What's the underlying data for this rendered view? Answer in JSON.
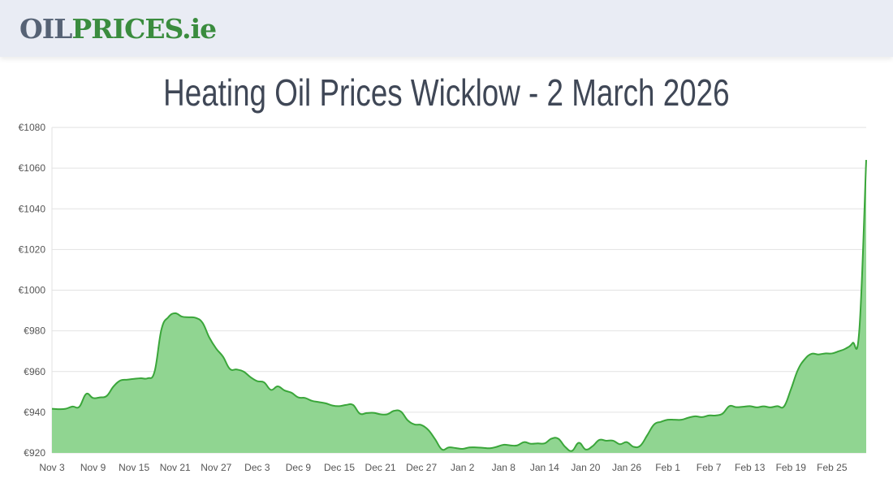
{
  "header": {
    "logo_part1": "OIL",
    "logo_part2": "PRICES.ie"
  },
  "page_title": "Heating Oil Prices Wicklow - 2 March 2026",
  "colors": {
    "header_bg": "#e9ecf4",
    "logo_grey": "#566275",
    "logo_green": "#3a8c3e",
    "line": "#3aa63a",
    "fill": "#90d591"
  },
  "chart_data": {
    "type": "area",
    "title": "",
    "xlabel": "",
    "ylabel": "",
    "ylim": [
      920,
      1080
    ],
    "y_ticks": [
      "€920",
      "€940",
      "€960",
      "€980",
      "€1000",
      "€1020",
      "€1040",
      "€1060",
      "€1080"
    ],
    "x_ticks": [
      "Nov 3",
      "Nov 9",
      "Nov 15",
      "Nov 21",
      "Nov 27",
      "Dec 3",
      "Dec 9",
      "Dec 15",
      "Dec 21",
      "Dec 27",
      "Jan 2",
      "Jan 8",
      "Jan 14",
      "Jan 20",
      "Jan 26",
      "Feb 1",
      "Feb 7",
      "Feb 13",
      "Feb 19",
      "Feb 25"
    ],
    "x_start": "Nov 3",
    "x_end": "Mar 2",
    "grid": true,
    "values": [
      941.7,
      941.5,
      941.7,
      942.8,
      942.7,
      949,
      947,
      947.3,
      948,
      952.7,
      955.6,
      956,
      956.4,
      956.7,
      956.7,
      960,
      980.7,
      986.7,
      988.7,
      987,
      986.7,
      986.4,
      984,
      976.7,
      971.3,
      967.3,
      961.3,
      961,
      960,
      957.3,
      955.3,
      954.7,
      951,
      952.7,
      950.7,
      949.6,
      947.3,
      947,
      945.6,
      945,
      944.4,
      943.3,
      943,
      943.6,
      943.6,
      939.3,
      939.6,
      939.7,
      939,
      939,
      940.7,
      940.3,
      936,
      934,
      933.7,
      931.3,
      926.7,
      921.7,
      922.7,
      922.4,
      922,
      922.7,
      922.7,
      922.5,
      922.3,
      923,
      924,
      923.7,
      923.7,
      925.3,
      924.5,
      924.7,
      924.7,
      927,
      927,
      923,
      921,
      925,
      921.7,
      923.3,
      926.4,
      926,
      926,
      924.3,
      925.3,
      923,
      923.6,
      928.7,
      934,
      935.3,
      936.3,
      936.3,
      936.3,
      937.3,
      938,
      937.6,
      938.4,
      938.4,
      939.3,
      943,
      942.5,
      942.7,
      943,
      942.4,
      942.9,
      942.4,
      943,
      942.9,
      951.3,
      960.7,
      966,
      968.7,
      968.4,
      968.9,
      968.9,
      970,
      971.3,
      974,
      980.7,
      1064
    ]
  }
}
